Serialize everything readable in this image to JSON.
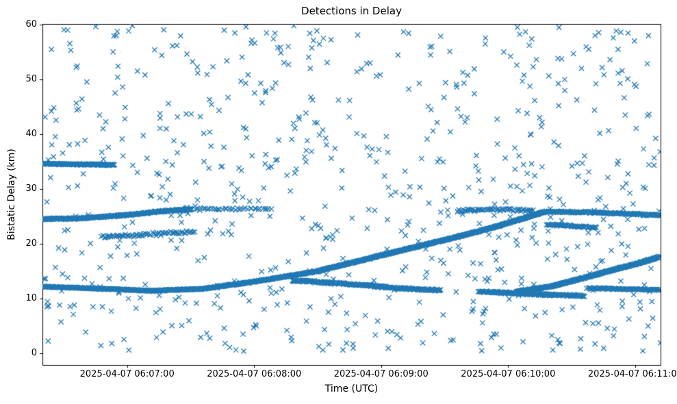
{
  "chart_data": {
    "type": "scatter",
    "title": "Detections in Delay",
    "xlabel": "Time (UTC)",
    "ylabel": "Bistatic Delay (km)",
    "marker": "x",
    "marker_color": "#1f77b4",
    "marker_size_px": 7.2,
    "grid": false,
    "legend": "none",
    "background": "#ffffff",
    "x_axis_start_utc": "2025-04-07 06:06:20",
    "x_axis_end_utc": "2025-04-07 06:11:12",
    "duration_s": 292,
    "ylim": [
      -2.1,
      60.1
    ],
    "x_ticks": [
      {
        "t": 40,
        "label": "2025-04-07 06:07:00"
      },
      {
        "t": 100,
        "label": "2025-04-07 06:08:00"
      },
      {
        "t": 160,
        "label": "2025-04-07 06:09:00"
      },
      {
        "t": 220,
        "label": "2025-04-07 06:10:00"
      },
      {
        "t": 280,
        "label": "2025-04-07 06:11:00"
      }
    ],
    "y_ticks": [
      {
        "v": 0,
        "label": "0"
      },
      {
        "v": 10,
        "label": "10"
      },
      {
        "v": 20,
        "label": "20"
      },
      {
        "v": 30,
        "label": "30"
      },
      {
        "v": 40,
        "label": "40"
      },
      {
        "v": 50,
        "label": "50"
      },
      {
        "v": 60,
        "label": "60"
      }
    ],
    "tracks": [
      {
        "name": "main-climb",
        "density": 5,
        "jitter": 0.13,
        "pts": [
          [
            0,
            12.2
          ],
          [
            28,
            11.8
          ],
          [
            52,
            11.45
          ],
          [
            76,
            11.8
          ],
          [
            100,
            13.1
          ],
          [
            130,
            15.0
          ],
          [
            160,
            17.9
          ],
          [
            190,
            20.7
          ],
          [
            214,
            23.1
          ],
          [
            230,
            25.0
          ],
          [
            238,
            25.9
          ]
        ]
      },
      {
        "name": "plateau-right",
        "density": 3,
        "jitter": 0.2,
        "pts": [
          [
            238,
            25.9
          ],
          [
            262,
            25.7
          ],
          [
            292,
            25.2
          ]
        ]
      },
      {
        "name": "left-band",
        "density": 4,
        "jitter": 0.18,
        "pts": [
          [
            0,
            24.5
          ],
          [
            14,
            24.6
          ],
          [
            28,
            24.9
          ],
          [
            44,
            25.4
          ],
          [
            58,
            26.0
          ],
          [
            70,
            26.3
          ]
        ]
      },
      {
        "name": "left-band-tail",
        "density": 1,
        "jitter": 0.3,
        "pts": [
          [
            70,
            26.3
          ],
          [
            108,
            26.4
          ]
        ]
      },
      {
        "name": "left-cluster-34",
        "density": 4.5,
        "jitter": 0.14,
        "pts": [
          [
            0,
            34.6
          ],
          [
            34,
            34.4
          ]
        ]
      },
      {
        "name": "cluster-21",
        "density": 1.6,
        "jitter": 0.4,
        "pts": [
          [
            28,
            21.2
          ],
          [
            72,
            22.2
          ]
        ]
      },
      {
        "name": "mid-band",
        "density": 3.5,
        "jitter": 0.22,
        "pts": [
          [
            118,
            13.3
          ],
          [
            144,
            12.7
          ],
          [
            168,
            11.9
          ],
          [
            188,
            11.5
          ]
        ]
      },
      {
        "name": "low-band-right",
        "density": 3.5,
        "jitter": 0.2,
        "pts": [
          [
            206,
            11.3
          ],
          [
            232,
            10.8
          ],
          [
            256,
            10.5
          ]
        ]
      },
      {
        "name": "right-rise",
        "density": 6,
        "jitter": 0.14,
        "pts": [
          [
            224,
            11.3
          ],
          [
            240,
            12.2
          ],
          [
            256,
            13.8
          ],
          [
            272,
            15.5
          ],
          [
            282,
            16.5
          ],
          [
            292,
            17.7
          ]
        ]
      },
      {
        "name": "right-flat-low",
        "density": 3,
        "jitter": 0.16,
        "pts": [
          [
            258,
            11.9
          ],
          [
            292,
            11.6
          ]
        ]
      },
      {
        "name": "band-26-mid",
        "density": 1.8,
        "jitter": 0.28,
        "pts": [
          [
            196,
            26.0
          ],
          [
            214,
            26.3
          ],
          [
            232,
            26.1
          ]
        ]
      },
      {
        "name": "cluster-23",
        "density": 2.4,
        "jitter": 0.22,
        "pts": [
          [
            238,
            23.5
          ],
          [
            262,
            23.0
          ]
        ]
      }
    ],
    "noise": {
      "count": 720,
      "v_min": 0.4,
      "v_max": 59.8,
      "seed": 20250407
    }
  }
}
